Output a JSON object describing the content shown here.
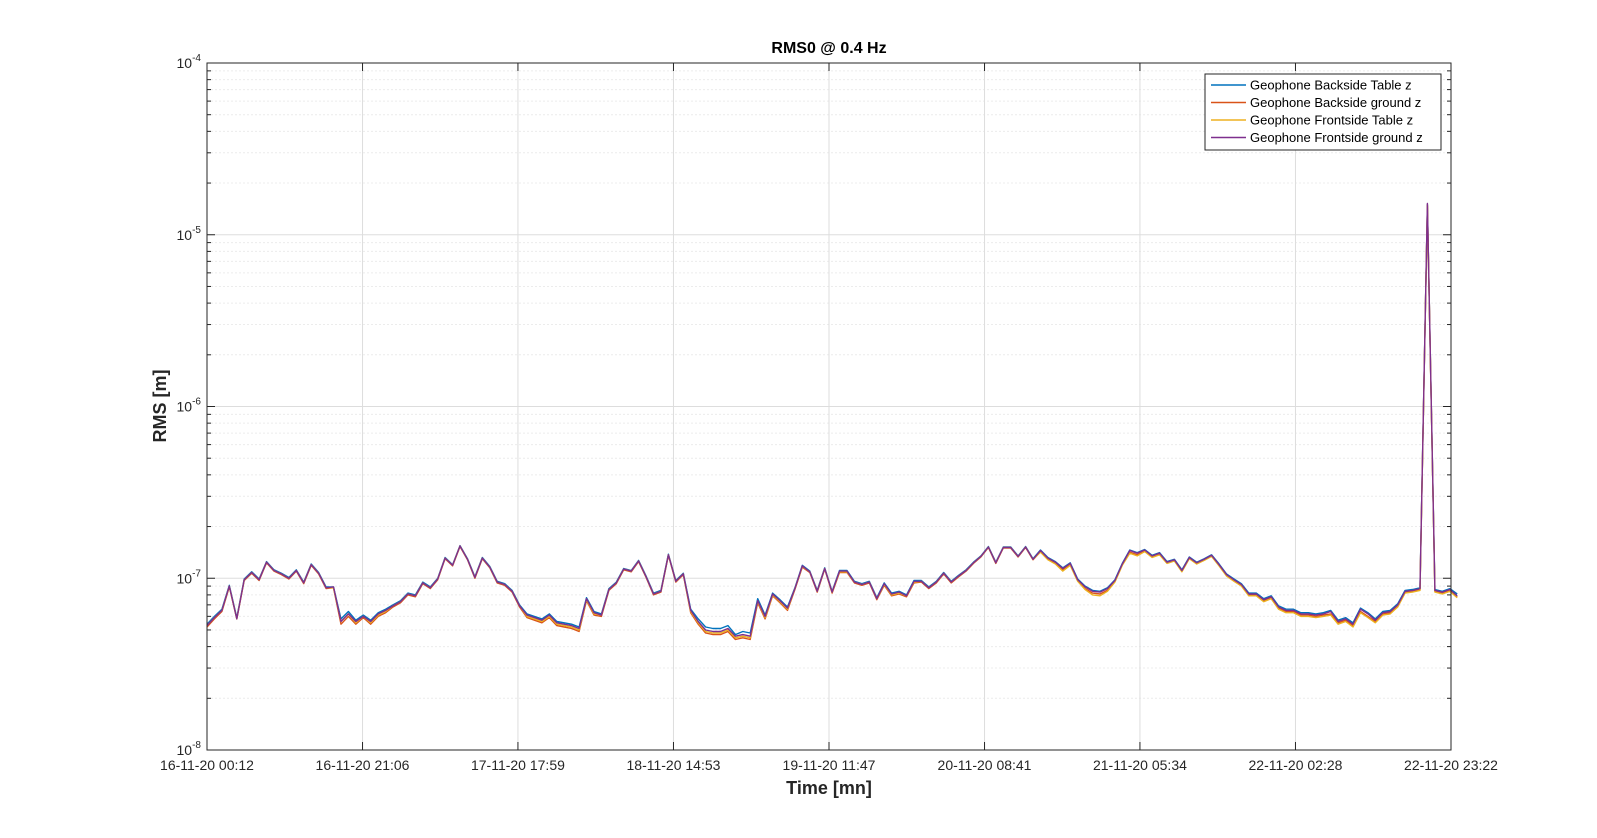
{
  "chart_data": {
    "type": "line",
    "title": "RMS0 @ 0.4 Hz",
    "xlabel": "Time [mn]",
    "ylabel": "RMS [m]",
    "yscale": "log",
    "ylim": [
      1e-08,
      0.0001
    ],
    "y_ticks": [
      {
        "base": "10",
        "exp": "-8"
      },
      {
        "base": "10",
        "exp": "-7"
      },
      {
        "base": "10",
        "exp": "-6"
      },
      {
        "base": "10",
        "exp": "-5"
      },
      {
        "base": "10",
        "exp": "-4"
      }
    ],
    "x_tick_labels": [
      "16-11-20 00:12",
      "16-11-20 21:06",
      "17-11-20 17:59",
      "18-11-20 14:53",
      "19-11-20 11:47",
      "20-11-20 08:41",
      "21-11-20 05:34",
      "22-11-20 02:28",
      "22-11-20 23:22"
    ],
    "xlim": [
      "16-11-20 00:12",
      "22-11-20 23:22"
    ],
    "x_step_hours": 1,
    "grid": true,
    "minor_grid": true,
    "legend_position": "top-right",
    "series": [
      {
        "name": "Geophone Backside Table z",
        "color": "#0072BD",
        "values": [
          5.4e-08,
          6e-08,
          6.6e-08,
          9.1e-08,
          5.9e-08,
          9.9e-08,
          1.09e-07,
          9.9e-08,
          1.25e-07,
          1.12e-07,
          1.07e-07,
          1.01e-07,
          1.12e-07,
          9.5e-08,
          1.21e-07,
          1.08e-07,
          8.9e-08,
          8.9e-08,
          5.8e-08,
          6.4e-08,
          5.7e-08,
          6.1e-08,
          5.7e-08,
          6.3e-08,
          6.6e-08,
          7e-08,
          7.4e-08,
          8.2e-08,
          8e-08,
          9.5e-08,
          8.9e-08,
          1e-07,
          1.32e-07,
          1.2e-07,
          1.55e-07,
          1.3e-07,
          1.02e-07,
          1.32e-07,
          1.17e-07,
          9.6e-08,
          9.3e-08,
          8.5e-08,
          7e-08,
          6.2e-08,
          6e-08,
          5.8e-08,
          6.2e-08,
          5.6e-08,
          5.5e-08,
          5.4e-08,
          5.2e-08,
          7.7e-08,
          6.4e-08,
          6.2e-08,
          8.7e-08,
          9.5e-08,
          1.14e-07,
          1.11e-07,
          1.27e-07,
          1.03e-07,
          8.2e-08,
          8.5e-08,
          1.38e-07,
          9.7e-08,
          1.07e-07,
          6.6e-08,
          5.8e-08,
          5.2e-08,
          5.1e-08,
          5.1e-08,
          5.3e-08,
          4.7e-08,
          4.9e-08,
          4.8e-08,
          7.6e-08,
          6.1e-08,
          8.2e-08,
          7.5e-08,
          6.8e-08,
          8.8e-08,
          1.19e-07,
          1.1e-07,
          8.5e-08,
          1.15e-07,
          8.4e-08,
          1.11e-07,
          1.11e-07,
          9.6e-08,
          9.3e-08,
          9.6e-08,
          7.7e-08,
          9.4e-08,
          8.2e-08,
          8.4e-08,
          8e-08,
          9.7e-08,
          9.7e-08,
          8.9e-08,
          9.6e-08,
          1.08e-07,
          9.6e-08,
          1.04e-07,
          1.12e-07,
          1.24e-07,
          1.35e-07,
          1.53e-07,
          1.24e-07,
          1.52e-07,
          1.52e-07,
          1.35e-07,
          1.53e-07,
          1.3e-07,
          1.46e-07,
          1.32e-07,
          1.25e-07,
          1.15e-07,
          1.23e-07,
          9.9e-08,
          9e-08,
          8.5e-08,
          8.4e-08,
          8.8e-08,
          9.8e-08,
          1.22e-07,
          1.46e-07,
          1.41e-07,
          1.47e-07,
          1.36e-07,
          1.41e-07,
          1.25e-07,
          1.29e-07,
          1.12e-07,
          1.33e-07,
          1.24e-07,
          1.3e-07,
          1.37e-07,
          1.21e-07,
          1.06e-07,
          9.9e-08,
          9.3e-08,
          8.2e-08,
          8.2e-08,
          7.6e-08,
          7.9e-08,
          6.9e-08,
          6.6e-08,
          6.6e-08,
          6.3e-08,
          6.3e-08,
          6.2e-08,
          6.3e-08,
          6.5e-08,
          5.7e-08,
          5.9e-08,
          5.5e-08,
          6.7e-08,
          6.3e-08,
          5.8e-08,
          6.4e-08,
          6.5e-08,
          7.1e-08,
          8.5e-08,
          8.6e-08,
          8.8e-08,
          1.5e-05,
          8.6e-08,
          8.4e-08,
          8.7e-08,
          8.1e-08
        ]
      },
      {
        "name": "Geophone Backside ground z",
        "color": "#D95319",
        "values": [
          5.2e-08,
          5.8e-08,
          6.4e-08,
          8.9e-08,
          5.8e-08,
          9.7e-08,
          1.07e-07,
          9.7e-08,
          1.23e-07,
          1.1e-07,
          1.05e-07,
          9.9e-08,
          1.1e-07,
          9.3e-08,
          1.19e-07,
          1.06e-07,
          8.7e-08,
          8.8e-08,
          5.4e-08,
          6e-08,
          5.4e-08,
          5.9e-08,
          5.4e-08,
          6e-08,
          6.3e-08,
          6.8e-08,
          7.2e-08,
          8e-08,
          7.8e-08,
          9.3e-08,
          8.7e-08,
          9.8e-08,
          1.3e-07,
          1.18e-07,
          1.53e-07,
          1.28e-07,
          1e-07,
          1.3e-07,
          1.15e-07,
          9.4e-08,
          9.1e-08,
          8.3e-08,
          6.8e-08,
          5.9e-08,
          5.7e-08,
          5.5e-08,
          5.9e-08,
          5.3e-08,
          5.2e-08,
          5.1e-08,
          4.9e-08,
          7.4e-08,
          6.1e-08,
          6e-08,
          8.5e-08,
          9.3e-08,
          1.12e-07,
          1.09e-07,
          1.25e-07,
          1.01e-07,
          8e-08,
          8.3e-08,
          1.36e-07,
          9.5e-08,
          1.05e-07,
          6.3e-08,
          5.4e-08,
          4.8e-08,
          4.7e-08,
          4.7e-08,
          4.9e-08,
          4.4e-08,
          4.5e-08,
          4.4e-08,
          7.2e-08,
          5.8e-08,
          7.9e-08,
          7.2e-08,
          6.5e-08,
          8.6e-08,
          1.16e-07,
          1.08e-07,
          8.3e-08,
          1.13e-07,
          8.2e-08,
          1.08e-07,
          1.08e-07,
          9.4e-08,
          9.1e-08,
          9.4e-08,
          7.5e-08,
          9.1e-08,
          7.9e-08,
          8.1e-08,
          7.8e-08,
          9.4e-08,
          9.5e-08,
          8.7e-08,
          9.4e-08,
          1.06e-07,
          9.4e-08,
          1.02e-07,
          1.1e-07,
          1.22e-07,
          1.33e-07,
          1.51e-07,
          1.22e-07,
          1.5e-07,
          1.5e-07,
          1.33e-07,
          1.51e-07,
          1.28e-07,
          1.43e-07,
          1.29e-07,
          1.22e-07,
          1.12e-07,
          1.2e-07,
          9.7e-08,
          8.7e-08,
          8.2e-08,
          8.1e-08,
          8.5e-08,
          9.6e-08,
          1.2e-07,
          1.42e-07,
          1.37e-07,
          1.44e-07,
          1.33e-07,
          1.38e-07,
          1.23e-07,
          1.27e-07,
          1.1e-07,
          1.31e-07,
          1.22e-07,
          1.28e-07,
          1.35e-07,
          1.19e-07,
          1.04e-07,
          9.7e-08,
          9.1e-08,
          8e-08,
          8e-08,
          7.4e-08,
          7.7e-08,
          6.7e-08,
          6.4e-08,
          6.4e-08,
          6.1e-08,
          6.1e-08,
          6e-08,
          6.1e-08,
          6.2e-08,
          5.5e-08,
          5.7e-08,
          5.3e-08,
          6.4e-08,
          6e-08,
          5.6e-08,
          6.2e-08,
          6.3e-08,
          6.9e-08,
          8.3e-08,
          8.4e-08,
          8.6e-08,
          1.48e-05,
          8.4e-08,
          8.2e-08,
          8.5e-08,
          7.8e-08
        ]
      },
      {
        "name": "Geophone Frontside Table z",
        "color": "#EDB120",
        "values": [
          5.3e-08,
          5.9e-08,
          6.5e-08,
          9e-08,
          5.8e-08,
          9.8e-08,
          1.08e-07,
          9.8e-08,
          1.24e-07,
          1.11e-07,
          1.06e-07,
          1e-07,
          1.11e-07,
          9.4e-08,
          1.2e-07,
          1.07e-07,
          8.8e-08,
          8.8e-08,
          5.6e-08,
          6.2e-08,
          5.5e-08,
          6e-08,
          5.5e-08,
          6.1e-08,
          6.4e-08,
          6.9e-08,
          7.3e-08,
          8.1e-08,
          7.9e-08,
          9.4e-08,
          8.8e-08,
          9.9e-08,
          1.31e-07,
          1.19e-07,
          1.54e-07,
          1.29e-07,
          1.01e-07,
          1.31e-07,
          1.16e-07,
          9.5e-08,
          9.2e-08,
          8.4e-08,
          6.9e-08,
          6e-08,
          5.8e-08,
          5.6e-08,
          6e-08,
          5.4e-08,
          5.3e-08,
          5.2e-08,
          5e-08,
          7.5e-08,
          6.2e-08,
          6.1e-08,
          8.6e-08,
          9.4e-08,
          1.13e-07,
          1.1e-07,
          1.26e-07,
          1.02e-07,
          8.1e-08,
          8.4e-08,
          1.37e-07,
          9.6e-08,
          1.06e-07,
          6.4e-08,
          5.5e-08,
          4.9e-08,
          4.8e-08,
          4.8e-08,
          5e-08,
          4.5e-08,
          4.6e-08,
          4.5e-08,
          7.3e-08,
          5.9e-08,
          8e-08,
          7.3e-08,
          6.6e-08,
          8.7e-08,
          1.17e-07,
          1.09e-07,
          8.4e-08,
          1.14e-07,
          8.3e-08,
          1.09e-07,
          1.09e-07,
          9.5e-08,
          9.2e-08,
          9.5e-08,
          7.6e-08,
          9.2e-08,
          8e-08,
          8.2e-08,
          7.9e-08,
          9.5e-08,
          9.6e-08,
          8.8e-08,
          9.5e-08,
          1.07e-07,
          9.5e-08,
          1.03e-07,
          1.11e-07,
          1.23e-07,
          1.34e-07,
          1.52e-07,
          1.23e-07,
          1.51e-07,
          1.51e-07,
          1.34e-07,
          1.52e-07,
          1.29e-07,
          1.42e-07,
          1.28e-07,
          1.21e-07,
          1.1e-07,
          1.19e-07,
          9.6e-08,
          8.6e-08,
          8e-08,
          7.9e-08,
          8.4e-08,
          9.5e-08,
          1.19e-07,
          1.4e-07,
          1.35e-07,
          1.43e-07,
          1.32e-07,
          1.37e-07,
          1.22e-07,
          1.26e-07,
          1.09e-07,
          1.3e-07,
          1.21e-07,
          1.27e-07,
          1.34e-07,
          1.18e-07,
          1.03e-07,
          9.6e-08,
          9e-08,
          7.9e-08,
          7.9e-08,
          7.3e-08,
          7.6e-08,
          6.6e-08,
          6.3e-08,
          6.3e-08,
          6e-08,
          6e-08,
          5.9e-08,
          6e-08,
          6.1e-08,
          5.4e-08,
          5.6e-08,
          5.2e-08,
          6.3e-08,
          5.9e-08,
          5.5e-08,
          6.1e-08,
          6.2e-08,
          6.8e-08,
          8.2e-08,
          8.3e-08,
          8.5e-08,
          1.49e-05,
          8.3e-08,
          8.1e-08,
          8.4e-08,
          7.7e-08
        ]
      },
      {
        "name": "Geophone Frontside ground z",
        "color": "#7E2F8E",
        "values": [
          5.3e-08,
          5.9e-08,
          6.5e-08,
          9e-08,
          5.8e-08,
          9.8e-08,
          1.08e-07,
          9.8e-08,
          1.24e-07,
          1.11e-07,
          1.06e-07,
          1e-07,
          1.11e-07,
          9.4e-08,
          1.2e-07,
          1.07e-07,
          8.8e-08,
          8.9e-08,
          5.6e-08,
          6.2e-08,
          5.6e-08,
          6e-08,
          5.6e-08,
          6.2e-08,
          6.5e-08,
          6.9e-08,
          7.3e-08,
          8.1e-08,
          7.9e-08,
          9.4e-08,
          8.8e-08,
          9.9e-08,
          1.31e-07,
          1.19e-07,
          1.54e-07,
          1.29e-07,
          1.01e-07,
          1.31e-07,
          1.16e-07,
          9.5e-08,
          9.2e-08,
          8.4e-08,
          6.9e-08,
          6.1e-08,
          5.9e-08,
          5.7e-08,
          6.1e-08,
          5.5e-08,
          5.4e-08,
          5.3e-08,
          5.1e-08,
          7.6e-08,
          6.3e-08,
          6.1e-08,
          8.6e-08,
          9.4e-08,
          1.13e-07,
          1.1e-07,
          1.26e-07,
          1.02e-07,
          8.1e-08,
          8.4e-08,
          1.37e-07,
          9.6e-08,
          1.06e-07,
          6.5e-08,
          5.6e-08,
          5e-08,
          4.9e-08,
          4.9e-08,
          5.1e-08,
          4.6e-08,
          4.7e-08,
          4.6e-08,
          7.4e-08,
          6e-08,
          8.1e-08,
          7.4e-08,
          6.7e-08,
          8.7e-08,
          1.18e-07,
          1.09e-07,
          8.4e-08,
          1.14e-07,
          8.3e-08,
          1.1e-07,
          1.1e-07,
          9.5e-08,
          9.2e-08,
          9.5e-08,
          7.6e-08,
          9.3e-08,
          8.1e-08,
          8.3e-08,
          7.9e-08,
          9.6e-08,
          9.6e-08,
          8.8e-08,
          9.5e-08,
          1.07e-07,
          9.5e-08,
          1.03e-07,
          1.11e-07,
          1.23e-07,
          1.34e-07,
          1.52e-07,
          1.23e-07,
          1.51e-07,
          1.51e-07,
          1.34e-07,
          1.52e-07,
          1.29e-07,
          1.45e-07,
          1.31e-07,
          1.24e-07,
          1.14e-07,
          1.22e-07,
          9.8e-08,
          8.9e-08,
          8.4e-08,
          8.3e-08,
          8.7e-08,
          9.7e-08,
          1.21e-07,
          1.45e-07,
          1.4e-07,
          1.46e-07,
          1.35e-07,
          1.4e-07,
          1.24e-07,
          1.28e-07,
          1.11e-07,
          1.32e-07,
          1.23e-07,
          1.29e-07,
          1.36e-07,
          1.2e-07,
          1.05e-07,
          9.8e-08,
          9.2e-08,
          8.1e-08,
          8.1e-08,
          7.5e-08,
          7.8e-08,
          6.8e-08,
          6.5e-08,
          6.5e-08,
          6.2e-08,
          6.2e-08,
          6.1e-08,
          6.2e-08,
          6.4e-08,
          5.6e-08,
          5.8e-08,
          5.4e-08,
          6.6e-08,
          6.2e-08,
          5.7e-08,
          6.3e-08,
          6.4e-08,
          7e-08,
          8.4e-08,
          8.5e-08,
          8.7e-08,
          1.52e-05,
          8.5e-08,
          8.3e-08,
          8.6e-08,
          7.9e-08
        ]
      }
    ]
  }
}
